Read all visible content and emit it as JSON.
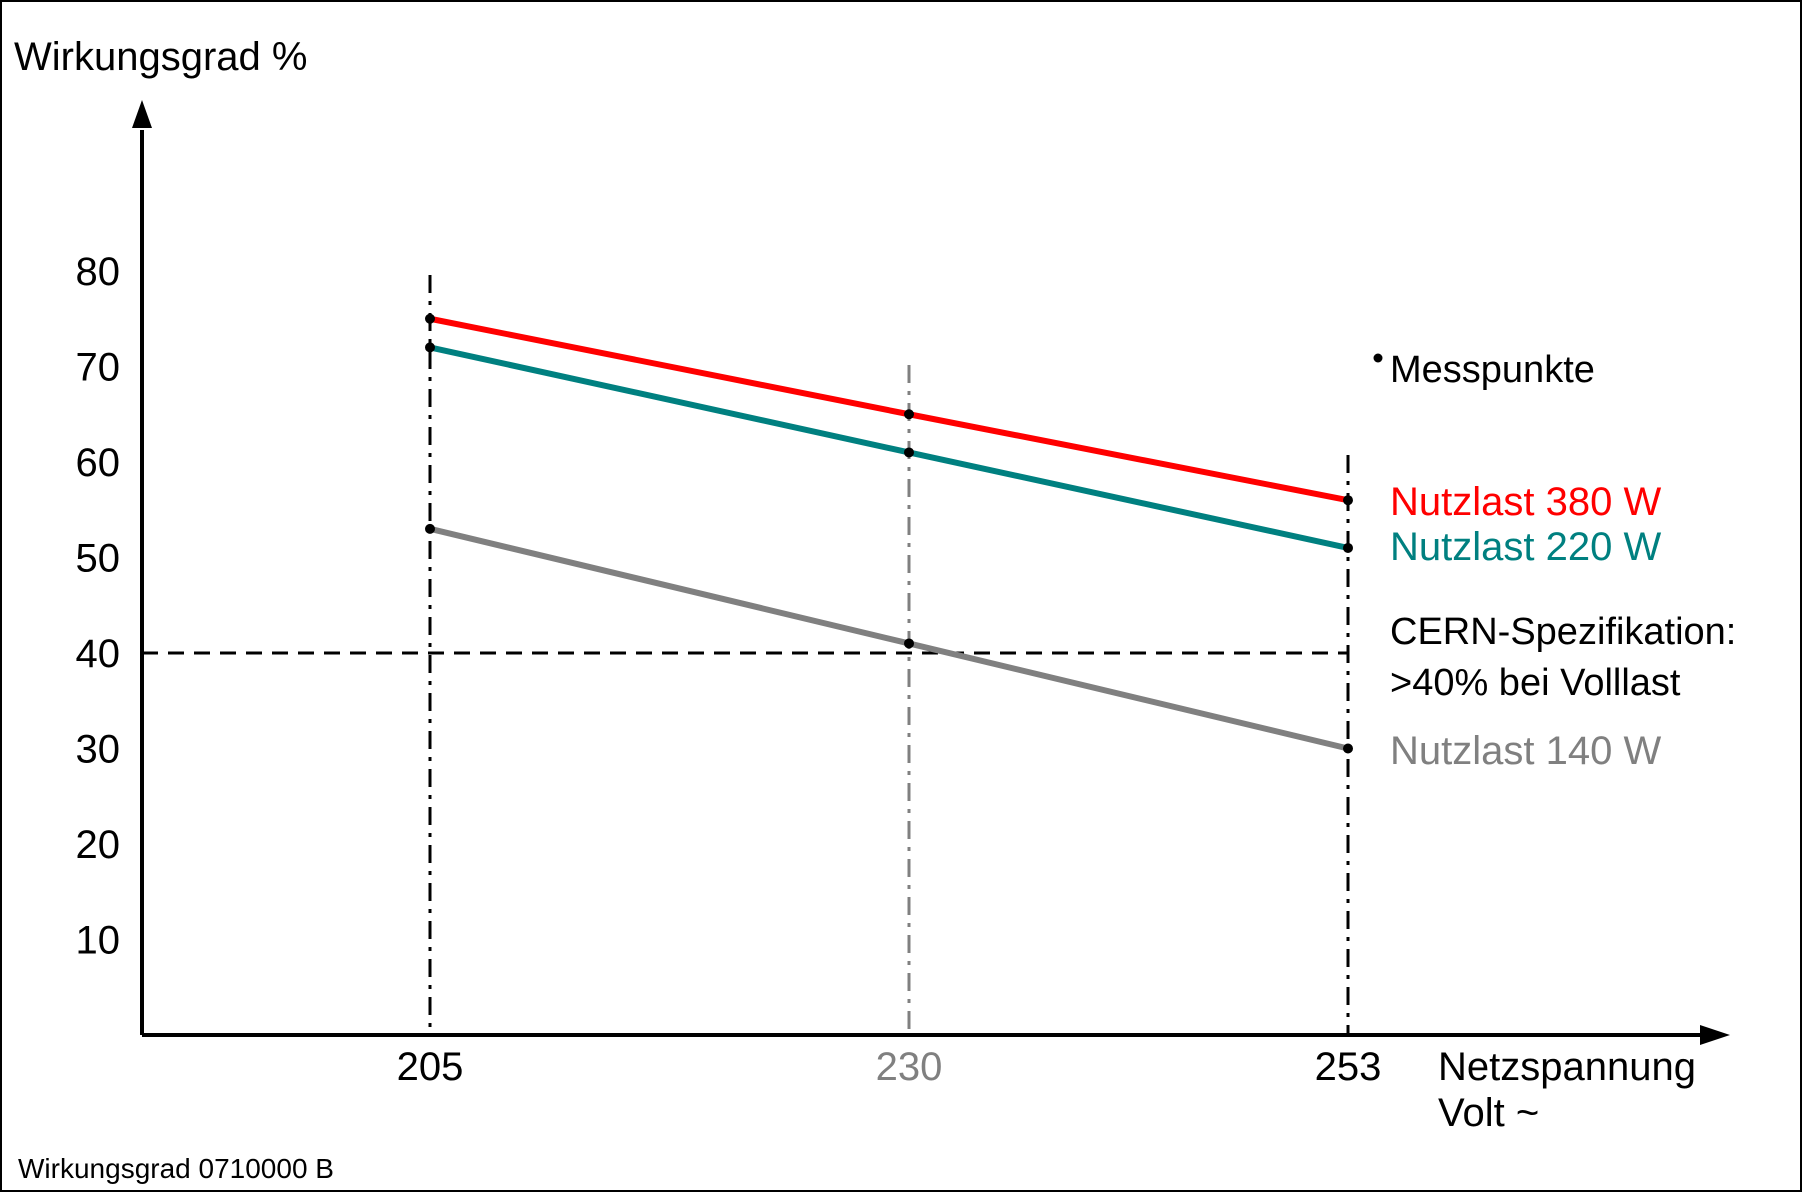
{
  "chart_data": {
    "type": "line",
    "ylabel": "Wirkungsgrad %",
    "xlabel_line1": "Netzspannung",
    "xlabel_line2": "Volt ~",
    "x": [
      205,
      230,
      253
    ],
    "x_tick_labels": [
      "205",
      "230",
      "253"
    ],
    "y_ticks": [
      10,
      20,
      30,
      40,
      50,
      60,
      70,
      80
    ],
    "y_tick_labels": [
      "10",
      "20",
      "30",
      "40",
      "50",
      "60",
      "70",
      "80"
    ],
    "series": [
      {
        "name": "Nutzlast 380 W",
        "color": "#ff0000",
        "values": [
          75,
          65,
          56
        ]
      },
      {
        "name": "Nutzlast 220 W",
        "color": "#008080",
        "values": [
          72,
          61,
          51
        ]
      },
      {
        "name": "Nutzlast 140 W",
        "color": "#808080",
        "values": [
          53,
          41,
          30
        ]
      }
    ],
    "threshold": {
      "value": 40,
      "label_line1": "CERN-Spezifikation:",
      "label_line2": ">40% bei Volllast"
    },
    "markers_legend": "Messpunkte",
    "footer": "Wirkungsgrad 0710000 B",
    "colors": {
      "axis": "#000000",
      "mid_gridline": "#808080"
    }
  }
}
